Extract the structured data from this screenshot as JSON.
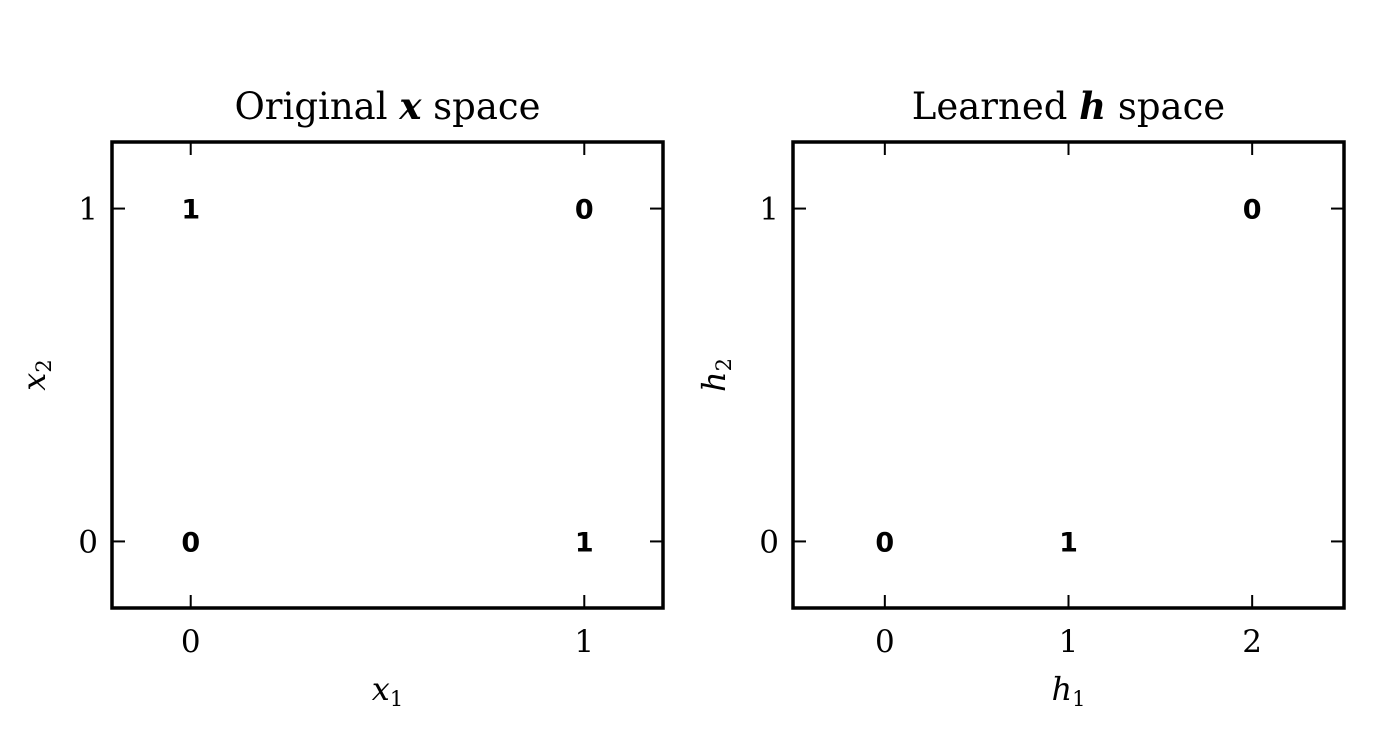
{
  "chart_data": [
    {
      "type": "scatter",
      "title_text": "Original ",
      "title_symbol": "x",
      "title_suffix": " space",
      "xlabel_base": "x",
      "xlabel_sub": "1",
      "ylabel_base": "x",
      "ylabel_sub": "2",
      "xlim": [
        -0.2,
        1.2
      ],
      "ylim": [
        -0.2,
        1.2
      ],
      "xticks": [
        0,
        1
      ],
      "yticks": [
        0,
        1
      ],
      "grid": false,
      "points": [
        {
          "x": 0,
          "y": 1,
          "label": "1"
        },
        {
          "x": 1,
          "y": 1,
          "label": "0"
        },
        {
          "x": 0,
          "y": 0,
          "label": "0"
        },
        {
          "x": 1,
          "y": 0,
          "label": "1"
        }
      ]
    },
    {
      "type": "scatter",
      "title_text": "Learned ",
      "title_symbol": "h",
      "title_suffix": " space",
      "xlabel_base": "h",
      "xlabel_sub": "1",
      "ylabel_base": "h",
      "ylabel_sub": "2",
      "xlim": [
        -0.5,
        2.5
      ],
      "ylim": [
        -0.2,
        1.2
      ],
      "xticks": [
        0,
        1,
        2
      ],
      "yticks": [
        0,
        1
      ],
      "grid": false,
      "points": [
        {
          "x": 2,
          "y": 1,
          "label": "0"
        },
        {
          "x": 0,
          "y": 0,
          "label": "0"
        },
        {
          "x": 1,
          "y": 0,
          "label": "1"
        }
      ]
    }
  ]
}
